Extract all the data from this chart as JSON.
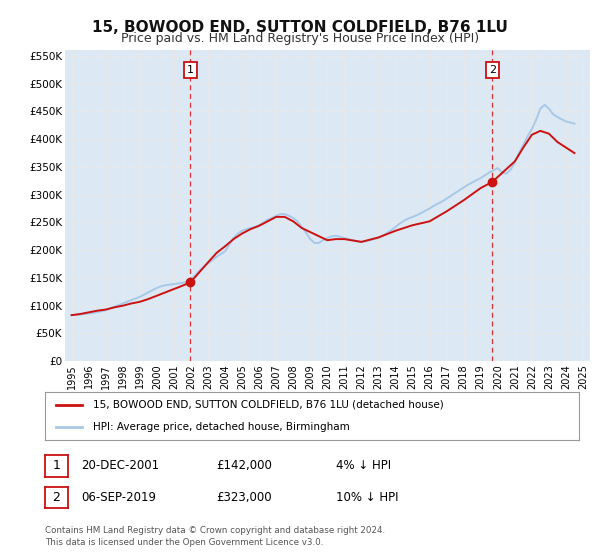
{
  "title": "15, BOWOOD END, SUTTON COLDFIELD, B76 1LU",
  "subtitle": "Price paid vs. HM Land Registry's House Price Index (HPI)",
  "title_fontsize": 11,
  "subtitle_fontsize": 9,
  "background_color": "#ffffff",
  "plot_bg_color": "#dce9f5",
  "grid_color": "#e8e8e8",
  "ylim": [
    0,
    560000
  ],
  "yticks": [
    0,
    50000,
    100000,
    150000,
    200000,
    250000,
    300000,
    350000,
    400000,
    450000,
    500000,
    550000
  ],
  "ytick_labels": [
    "£0",
    "£50K",
    "£100K",
    "£150K",
    "£200K",
    "£250K",
    "£300K",
    "£350K",
    "£400K",
    "£450K",
    "£500K",
    "£550K"
  ],
  "hpi_color": "#a8c8e8",
  "price_color": "#cc1111",
  "marker1_x": 2001.969,
  "marker1_value": 142000,
  "marker2_x": 2019.678,
  "marker2_value": 323000,
  "vline_color": "#dd3333",
  "legend_label_price": "15, BOWOOD END, SUTTON COLDFIELD, B76 1LU (detached house)",
  "legend_label_hpi": "HPI: Average price, detached house, Birmingham",
  "table_row1": [
    "1",
    "20-DEC-2001",
    "£142,000",
    "4% ↓ HPI"
  ],
  "table_row2": [
    "2",
    "06-SEP-2019",
    "£323,000",
    "10% ↓ HPI"
  ],
  "footnote1": "Contains HM Land Registry data © Crown copyright and database right 2024.",
  "footnote2": "This data is licensed under the Open Government Licence v3.0.",
  "hpi_data_x": [
    1995.0,
    1995.25,
    1995.5,
    1995.75,
    1996.0,
    1996.25,
    1996.5,
    1996.75,
    1997.0,
    1997.25,
    1997.5,
    1997.75,
    1998.0,
    1998.25,
    1998.5,
    1998.75,
    1999.0,
    1999.25,
    1999.5,
    1999.75,
    2000.0,
    2000.25,
    2000.5,
    2000.75,
    2001.0,
    2001.25,
    2001.5,
    2001.75,
    2002.0,
    2002.25,
    2002.5,
    2002.75,
    2003.0,
    2003.25,
    2003.5,
    2003.75,
    2004.0,
    2004.25,
    2004.5,
    2004.75,
    2005.0,
    2005.25,
    2005.5,
    2005.75,
    2006.0,
    2006.25,
    2006.5,
    2006.75,
    2007.0,
    2007.25,
    2007.5,
    2007.75,
    2008.0,
    2008.25,
    2008.5,
    2008.75,
    2009.0,
    2009.25,
    2009.5,
    2009.75,
    2010.0,
    2010.25,
    2010.5,
    2010.75,
    2011.0,
    2011.25,
    2011.5,
    2011.75,
    2012.0,
    2012.25,
    2012.5,
    2012.75,
    2013.0,
    2013.25,
    2013.5,
    2013.75,
    2014.0,
    2014.25,
    2014.5,
    2014.75,
    2015.0,
    2015.25,
    2015.5,
    2015.75,
    2016.0,
    2016.25,
    2016.5,
    2016.75,
    2017.0,
    2017.25,
    2017.5,
    2017.75,
    2018.0,
    2018.25,
    2018.5,
    2018.75,
    2019.0,
    2019.25,
    2019.5,
    2019.75,
    2020.0,
    2020.25,
    2020.5,
    2020.75,
    2021.0,
    2021.25,
    2021.5,
    2021.75,
    2022.0,
    2022.25,
    2022.5,
    2022.75,
    2023.0,
    2023.25,
    2023.5,
    2023.75,
    2024.0,
    2024.25,
    2024.5
  ],
  "hpi_data_y": [
    83000,
    83500,
    84000,
    85000,
    86000,
    87000,
    88500,
    90000,
    92000,
    95000,
    98000,
    101000,
    104000,
    107000,
    110000,
    113000,
    116000,
    120000,
    124000,
    128000,
    132000,
    135000,
    137000,
    138000,
    139000,
    140000,
    141000,
    143000,
    148000,
    155000,
    163000,
    170000,
    176000,
    182000,
    188000,
    193000,
    198000,
    210000,
    222000,
    230000,
    235000,
    238000,
    240000,
    242000,
    245000,
    250000,
    255000,
    258000,
    262000,
    265000,
    265000,
    262000,
    258000,
    252000,
    242000,
    232000,
    220000,
    213000,
    213000,
    218000,
    222000,
    225000,
    226000,
    224000,
    222000,
    220000,
    218000,
    216000,
    215000,
    216000,
    218000,
    220000,
    222000,
    226000,
    231000,
    236000,
    242000,
    248000,
    253000,
    257000,
    260000,
    263000,
    267000,
    271000,
    275000,
    280000,
    284000,
    288000,
    293000,
    298000,
    303000,
    308000,
    313000,
    318000,
    322000,
    326000,
    330000,
    335000,
    340000,
    344000,
    348000,
    340000,
    338000,
    345000,
    358000,
    375000,
    390000,
    405000,
    418000,
    435000,
    455000,
    462000,
    455000,
    445000,
    440000,
    436000,
    432000,
    430000,
    428000
  ],
  "price_data_x": [
    1995.0,
    1995.5,
    1996.0,
    1996.5,
    1997.0,
    1997.5,
    1998.0,
    1998.5,
    1999.0,
    1999.5,
    2000.0,
    2000.5,
    2001.0,
    2001.5,
    2001.969,
    2003.0,
    2003.5,
    2004.0,
    2004.5,
    2005.0,
    2005.5,
    2006.0,
    2006.5,
    2007.0,
    2007.5,
    2008.0,
    2008.5,
    2010.0,
    2010.5,
    2011.0,
    2012.0,
    2013.0,
    2014.0,
    2015.0,
    2016.0,
    2017.0,
    2018.0,
    2019.0,
    2019.678,
    2021.0,
    2021.5,
    2022.0,
    2022.5,
    2023.0,
    2023.5,
    2024.0,
    2024.5
  ],
  "price_data_y": [
    83000,
    85000,
    88000,
    91000,
    93000,
    97000,
    100000,
    104000,
    107000,
    112000,
    118000,
    124000,
    130000,
    136000,
    142000,
    178000,
    195000,
    207000,
    220000,
    230000,
    238000,
    244000,
    252000,
    260000,
    260000,
    252000,
    240000,
    218000,
    220000,
    220000,
    215000,
    223000,
    235000,
    245000,
    252000,
    270000,
    290000,
    312000,
    323000,
    360000,
    385000,
    408000,
    415000,
    410000,
    395000,
    385000,
    375000
  ]
}
